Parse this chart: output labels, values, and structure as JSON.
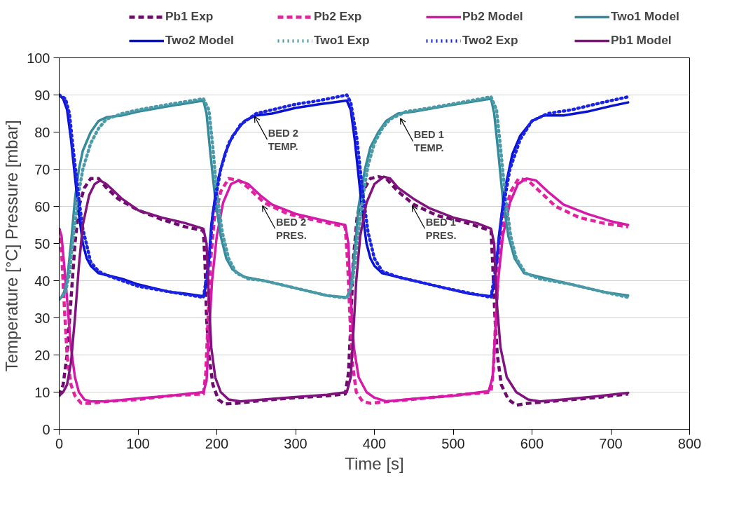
{
  "chart_data": {
    "type": "line",
    "xlabel": "Time [s]",
    "ylabel": "Temperature [°C] Pressure  [mbar]",
    "xlim": [
      0,
      800
    ],
    "xticks": [
      0,
      100,
      200,
      300,
      400,
      500,
      600,
      700,
      800
    ],
    "ylim": [
      0,
      100
    ],
    "yticks": [
      0,
      10,
      20,
      30,
      40,
      50,
      60,
      70,
      80,
      90,
      100
    ],
    "grid": "y",
    "legend": "top",
    "marker": "none",
    "annotations": [
      {
        "text": "BED 2\nTEMP.",
        "x": 248,
        "y": 85
      },
      {
        "text": "BED 2\nPRES.",
        "x": 258,
        "y": 61
      },
      {
        "text": "BED 1\nTEMP.",
        "x": 433,
        "y": 84.5
      },
      {
        "text": "BED 1\nPRES.",
        "x": 448,
        "y": 61
      }
    ],
    "series": [
      {
        "name": "Pb1 Exp",
        "color": "#6e0b6e",
        "line_style": "dashed",
        "x": [
          0,
          5,
          10,
          15,
          20,
          25,
          32,
          40,
          50,
          60,
          75,
          100,
          130,
          160,
          183,
          185,
          187,
          190,
          195,
          202,
          210,
          225,
          260,
          300,
          340,
          363,
          367,
          370,
          373,
          378,
          385,
          395,
          405,
          415,
          430,
          450,
          480,
          510,
          540,
          548,
          550,
          553,
          556,
          561,
          570,
          580,
          595,
          640,
          680,
          722
        ],
        "values": [
          9,
          12,
          20,
          35,
          50,
          60,
          65,
          67.5,
          67.5,
          65,
          62,
          59,
          56.5,
          54.5,
          53.5,
          45,
          30,
          20,
          12,
          8,
          6.8,
          7,
          7.8,
          8.5,
          9,
          9.5,
          15,
          28,
          45,
          57,
          64,
          67.5,
          68,
          67.5,
          64,
          60.5,
          57.5,
          56,
          54,
          53.5,
          45,
          30,
          20,
          12,
          8,
          6.5,
          7,
          7.8,
          8.5,
          9.5
        ]
      },
      {
        "name": "Pb2 Exp",
        "color": "#e2239e",
        "line_style": "dashed",
        "x": [
          0,
          3,
          6,
          10,
          15,
          20,
          28,
          40,
          60,
          100,
          140,
          183,
          186,
          189,
          192,
          197,
          205,
          215,
          228,
          240,
          260,
          290,
          330,
          363,
          366,
          369,
          372,
          377,
          385,
          395,
          420,
          470,
          520,
          548,
          551,
          554,
          558,
          564,
          573,
          583,
          595,
          610,
          630,
          660,
          690,
          722
        ],
        "values": [
          54,
          48,
          35,
          20,
          12,
          9,
          7,
          7,
          7.5,
          8,
          9,
          9.5,
          15,
          30,
          45,
          57,
          64,
          67.5,
          67,
          65,
          61,
          58,
          56,
          54.5,
          45,
          30,
          18,
          10,
          7.5,
          7,
          7.5,
          8.5,
          9.5,
          10,
          16,
          30,
          45,
          57,
          64,
          67.5,
          67,
          64,
          60,
          57,
          55.5,
          54.5
        ]
      },
      {
        "name": "Pb2 Model",
        "color": "#d619a8",
        "line_style": "solid",
        "x": [
          0,
          3,
          6,
          10,
          15,
          20,
          25,
          32,
          40,
          60,
          100,
          140,
          183,
          187,
          190,
          194,
          200,
          208,
          218,
          228,
          240,
          255,
          270,
          300,
          340,
          363,
          367,
          370,
          374,
          380,
          390,
          400,
          415,
          450,
          500,
          545,
          550,
          553,
          557,
          563,
          572,
          582,
          593,
          605,
          620,
          640,
          670,
          700,
          722
        ],
        "values": [
          54,
          52,
          45,
          35,
          22,
          14,
          10,
          8,
          7.5,
          7.5,
          8.3,
          9,
          10,
          13,
          25,
          40,
          52,
          61,
          66,
          67,
          66,
          63,
          60.5,
          58,
          56,
          55,
          50,
          35,
          22,
          14,
          10,
          8.5,
          7.5,
          8.2,
          9,
          10.3,
          14,
          25,
          40,
          52,
          61,
          66,
          67.5,
          67,
          64,
          60.5,
          58,
          56,
          55
        ]
      },
      {
        "name": "Two1 Model",
        "color": "#358a9c",
        "line_style": "solid",
        "x": [
          0,
          5,
          10,
          15,
          20,
          25,
          30,
          40,
          50,
          60,
          80,
          100,
          140,
          183,
          187,
          192,
          198,
          205,
          212,
          220,
          235,
          260,
          300,
          340,
          365,
          370,
          375,
          380,
          388,
          395,
          405,
          415,
          430,
          450,
          490,
          548,
          552,
          557,
          563,
          570,
          578,
          590,
          610,
          650,
          690,
          722
        ],
        "values": [
          35,
          36,
          40,
          50,
          62,
          70,
          75,
          80,
          83,
          84,
          84.5,
          85.5,
          87,
          88.5,
          85,
          74,
          62,
          52,
          46,
          43,
          41,
          40,
          38,
          36,
          35.5,
          38,
          48,
          60,
          70,
          76,
          80,
          83,
          85,
          85.5,
          87,
          89,
          85,
          75,
          62,
          52,
          46,
          42,
          41,
          39,
          37,
          36
        ]
      },
      {
        "name": "Two2 Model",
        "color": "#0a12d2",
        "line_style": "solid",
        "x": [
          0,
          5,
          10,
          15,
          20,
          25,
          30,
          35,
          40,
          50,
          60,
          80,
          100,
          120,
          140,
          160,
          183,
          188,
          193,
          200,
          210,
          220,
          235,
          250,
          270,
          300,
          330,
          365,
          370,
          375,
          380,
          385,
          390,
          395,
          400,
          410,
          430,
          460,
          490,
          520,
          548,
          553,
          558,
          565,
          575,
          585,
          600,
          615,
          640,
          670,
          700,
          722
        ],
        "values": [
          90,
          89,
          86,
          78,
          68,
          58,
          50,
          46,
          44,
          42,
          41.5,
          40.5,
          39,
          38,
          37,
          36.5,
          35.8,
          40,
          55,
          66,
          74,
          79,
          83,
          84.5,
          85,
          86.5,
          87.5,
          88.5,
          86,
          78,
          68,
          58,
          50,
          46,
          44,
          42,
          41,
          39.5,
          38,
          36.5,
          35.8,
          40,
          52,
          64,
          74,
          79,
          83,
          84.5,
          84.5,
          85.5,
          87,
          88
        ]
      },
      {
        "name": "Two1 Exp",
        "color": "#4a9aa8",
        "line_style": "dotted",
        "x": [
          0,
          8,
          13,
          18,
          25,
          30,
          40,
          50,
          60,
          80,
          100,
          140,
          183,
          190,
          195,
          200,
          207,
          215,
          225,
          240,
          260,
          300,
          340,
          365,
          372,
          378,
          385,
          392,
          400,
          410,
          420,
          440,
          470,
          510,
          548,
          555,
          560,
          566,
          573,
          580,
          592,
          610,
          650,
          690,
          722
        ],
        "values": [
          35,
          37,
          42,
          52,
          64,
          70,
          77,
          81,
          83.5,
          85,
          86,
          87.5,
          89,
          86,
          76,
          64,
          53,
          46,
          42,
          40.5,
          40,
          38,
          36,
          35.3,
          39,
          50,
          62,
          71,
          77,
          81,
          83.5,
          85.5,
          86.5,
          88,
          89.5,
          86,
          76,
          63,
          52,
          46,
          42,
          40.5,
          39,
          37,
          35.5
        ]
      },
      {
        "name": "Two2 Exp",
        "color": "#1a22e6",
        "line_style": "dotted",
        "x": [
          0,
          8,
          13,
          18,
          25,
          30,
          40,
          50,
          60,
          100,
          140,
          183,
          190,
          195,
          205,
          215,
          230,
          250,
          270,
          300,
          330,
          365,
          370,
          378,
          385,
          392,
          400,
          410,
          430,
          490,
          548,
          555,
          562,
          572,
          585,
          600,
          620,
          650,
          690,
          722
        ],
        "values": [
          90,
          89,
          85,
          75,
          62,
          54,
          45,
          42.5,
          41.5,
          38.5,
          37,
          35.5,
          45,
          58,
          70,
          77,
          82,
          85,
          86,
          87.5,
          88.5,
          90,
          88,
          78,
          64,
          53,
          46,
          42.5,
          41,
          38,
          35.5,
          45,
          58,
          70,
          78,
          83,
          85,
          86,
          88,
          89.5
        ]
      },
      {
        "name": "Pb1 Model",
        "color": "#81137f",
        "line_style": "solid",
        "x": [
          0,
          5,
          10,
          15,
          20,
          25,
          30,
          38,
          45,
          52,
          60,
          70,
          80,
          100,
          130,
          160,
          183,
          187,
          190,
          193,
          198,
          205,
          215,
          230,
          260,
          300,
          340,
          365,
          370,
          373,
          377,
          382,
          390,
          400,
          412,
          420,
          430,
          450,
          470,
          500,
          530,
          548,
          552,
          555,
          560,
          568,
          580,
          595,
          610,
          640,
          680,
          722
        ],
        "values": [
          9,
          10,
          12,
          18,
          30,
          44,
          55,
          63,
          66,
          67,
          66,
          64,
          62,
          59,
          57,
          55.5,
          54,
          50,
          35,
          22,
          14,
          10,
          8,
          7.5,
          8,
          8.7,
          9.3,
          10,
          14,
          25,
          40,
          52,
          61,
          66,
          68,
          67.5,
          65,
          62,
          59.5,
          57,
          55.5,
          54,
          50,
          35,
          22,
          14,
          10,
          8,
          7.5,
          8,
          8.8,
          9.8
        ]
      }
    ]
  }
}
